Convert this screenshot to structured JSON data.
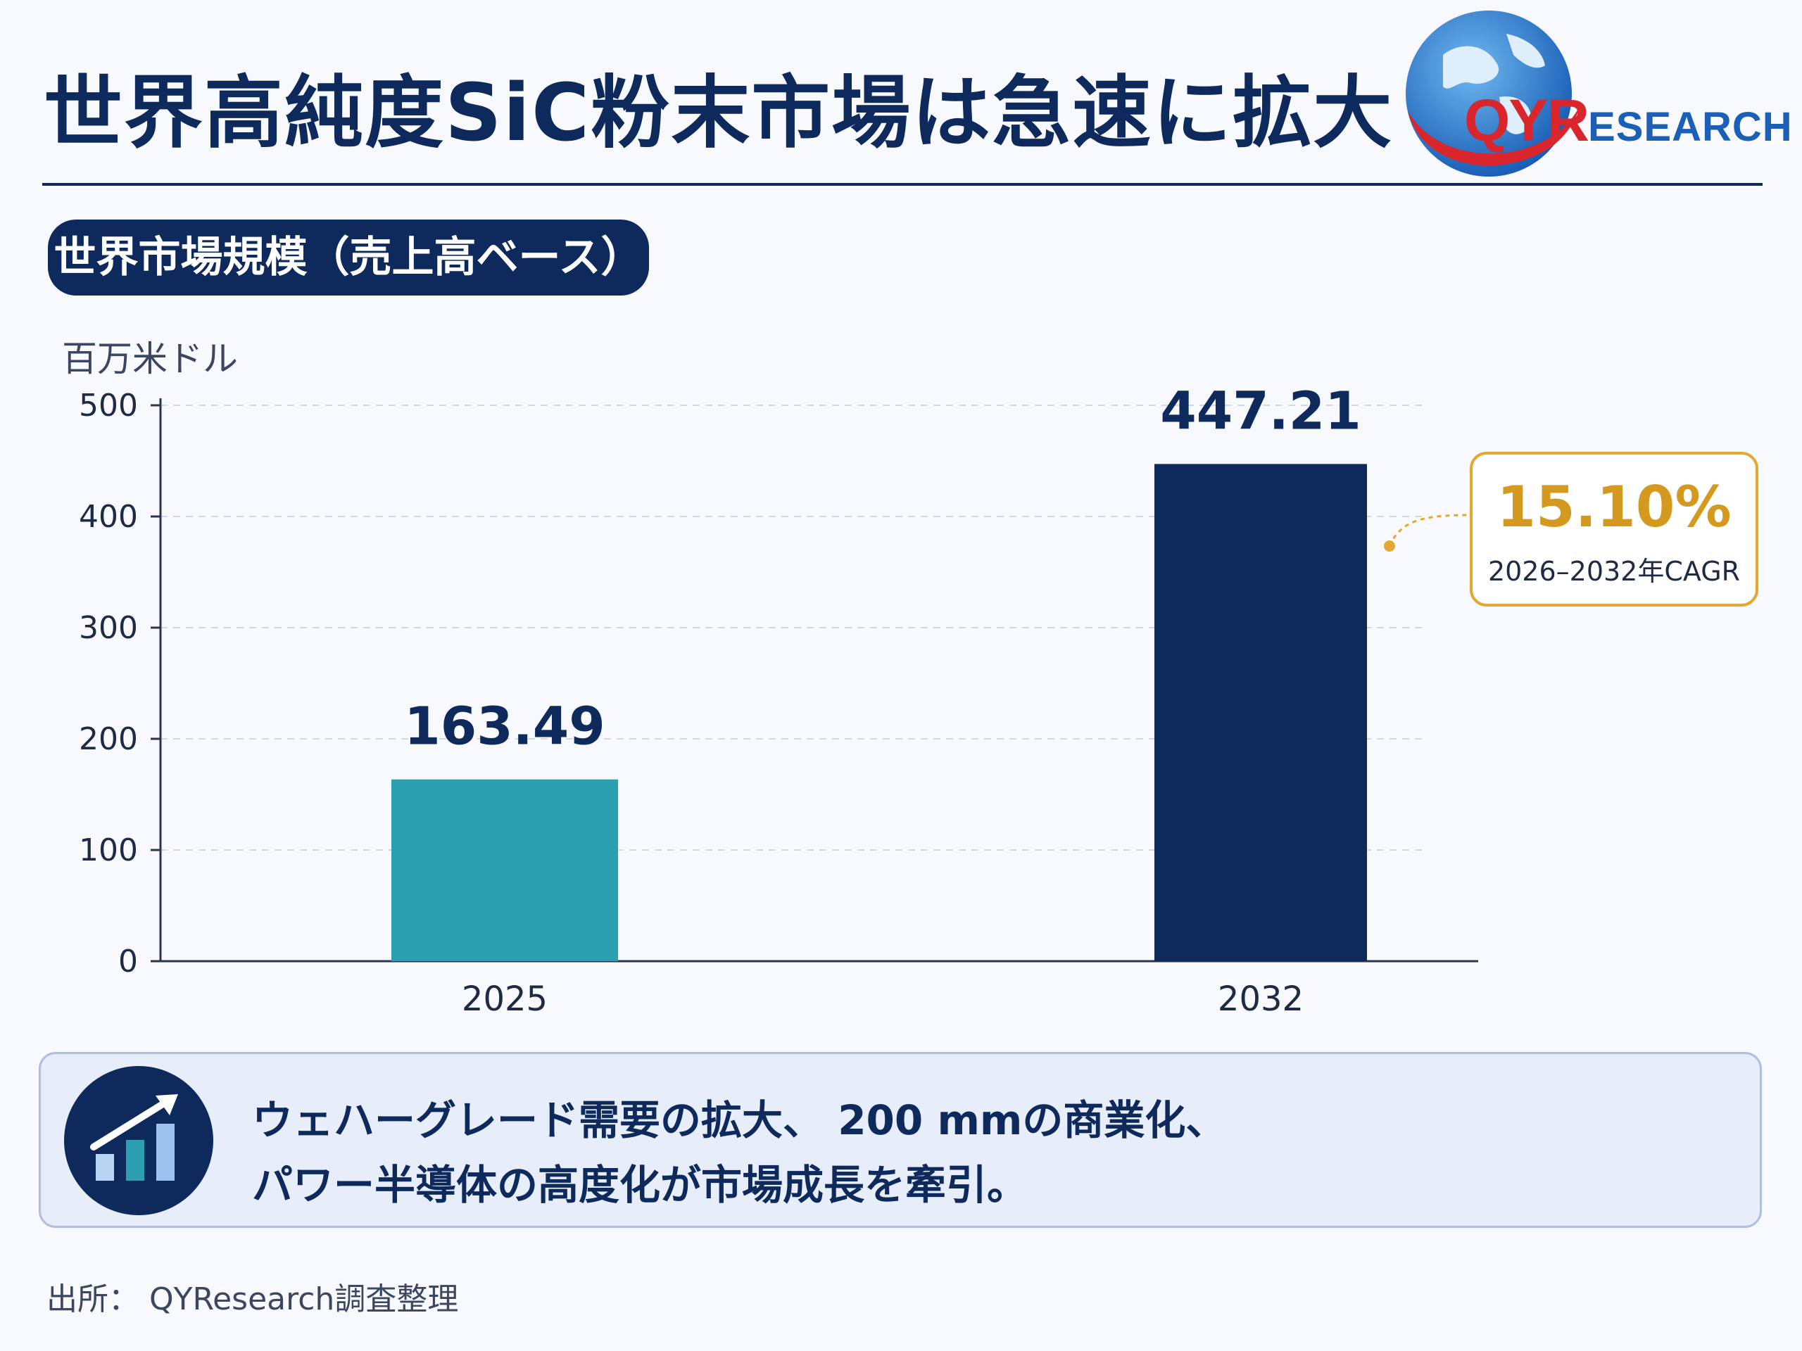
{
  "title": "世界高純度SiC粉末市場は急速に拡大",
  "logo": {
    "qyr": "QYR",
    "research": "ESEARCH",
    "colors": {
      "red": "#d8262c",
      "blue": "#1b5fb6"
    }
  },
  "section_label": "世界市場規模（売上高ベース）",
  "unit_label": "百万米ドル",
  "chart_data": {
    "type": "bar",
    "categories": [
      "2025",
      "2032"
    ],
    "values": [
      163.49,
      447.21
    ],
    "value_labels": [
      "163.49",
      "447.21"
    ],
    "bar_colors": [
      "#2aa0b1",
      "#0e2a5c"
    ],
    "ylim": [
      0,
      500
    ],
    "yticks": [
      0,
      100,
      200,
      300,
      400,
      500
    ],
    "ylabel": "百万米ドル",
    "grid": true,
    "grid_style": "dashed-horizontal",
    "annotation": {
      "value": "15.10%",
      "label": "2026–2032年CAGR",
      "color": "#d49a1f",
      "target": "2032"
    }
  },
  "insight": {
    "line1": "ウェハーグレード需要の拡大、 200 mmの商業化、",
    "line2": "パワー半導体の高度化が市場成長を牽引。",
    "icon": "growth-chart-icon"
  },
  "source": "出所： QYResearch調査整理"
}
